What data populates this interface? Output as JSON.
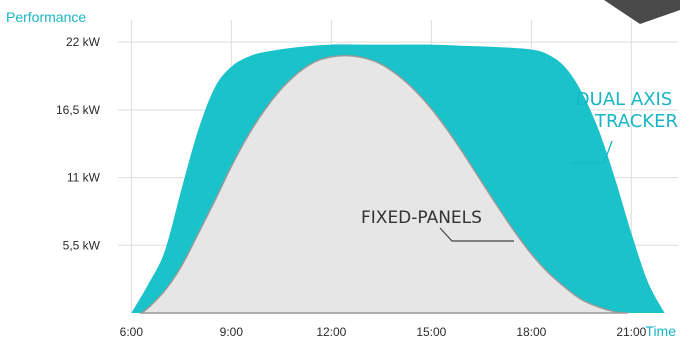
{
  "chart_data": {
    "type": "area",
    "xlabel": "Time",
    "ylabel": "Performance",
    "x_ticks": [
      "6:00",
      "9:00",
      "12:00",
      "15:00",
      "18:00",
      "21:00"
    ],
    "y_ticks": [
      "22 kW",
      "16,5 kW",
      "11 kW",
      "5,5 kW"
    ],
    "xlim": [
      5.6,
      22.4
    ],
    "ylim": [
      0,
      23.8
    ],
    "grid": true,
    "annotations": [
      {
        "lines": [
          "DUAL AXIS",
          "TRACKER"
        ],
        "color": "#19b6c6"
      },
      {
        "lines": [
          "FIXED-PANELS"
        ],
        "color": "#333333"
      }
    ],
    "colors": {
      "dual_axis_tracker": "#19c3c9",
      "fixed_panels": "#e6e6e6",
      "fixed_outline": "#9a9a9a",
      "grid": "#dddddd",
      "accent": "#19b6c6",
      "corner": "#4a4a4a"
    },
    "series": [
      {
        "key": "dual",
        "x": [
          6.0,
          6.5,
          7.0,
          7.5,
          8.0,
          8.5,
          9.0,
          9.5,
          10.0,
          11.0,
          12.0,
          13.0,
          14.0,
          15.0,
          16.0,
          17.0,
          18.0,
          18.5,
          19.0,
          19.5,
          20.0,
          20.5,
          21.0,
          21.5,
          22.0
        ],
        "y": [
          0,
          2.3,
          5.0,
          10.0,
          14.8,
          18.3,
          20.0,
          20.8,
          21.2,
          21.6,
          21.8,
          21.8,
          21.8,
          21.8,
          21.7,
          21.6,
          21.4,
          21.0,
          20.0,
          18.0,
          15.0,
          11.0,
          6.5,
          2.5,
          0
        ]
      },
      {
        "key": "fixed",
        "x": [
          6.3,
          6.5,
          7.0,
          7.5,
          8.0,
          8.5,
          9.0,
          9.5,
          10.0,
          10.5,
          11.0,
          11.5,
          12.0,
          12.5,
          13.0,
          13.5,
          14.0,
          14.5,
          15.0,
          15.5,
          16.0,
          16.5,
          17.0,
          17.5,
          18.0,
          18.5,
          19.0,
          19.5,
          20.0,
          20.5,
          20.9
        ],
        "y": [
          0,
          0.4,
          1.8,
          3.8,
          6.4,
          9.1,
          11.9,
          14.4,
          16.5,
          18.2,
          19.5,
          20.4,
          20.8,
          20.9,
          20.7,
          20.2,
          19.3,
          18.1,
          16.6,
          14.8,
          12.8,
          10.7,
          8.6,
          6.6,
          4.8,
          3.3,
          2.1,
          1.1,
          0.5,
          0.1,
          0
        ]
      }
    ]
  }
}
